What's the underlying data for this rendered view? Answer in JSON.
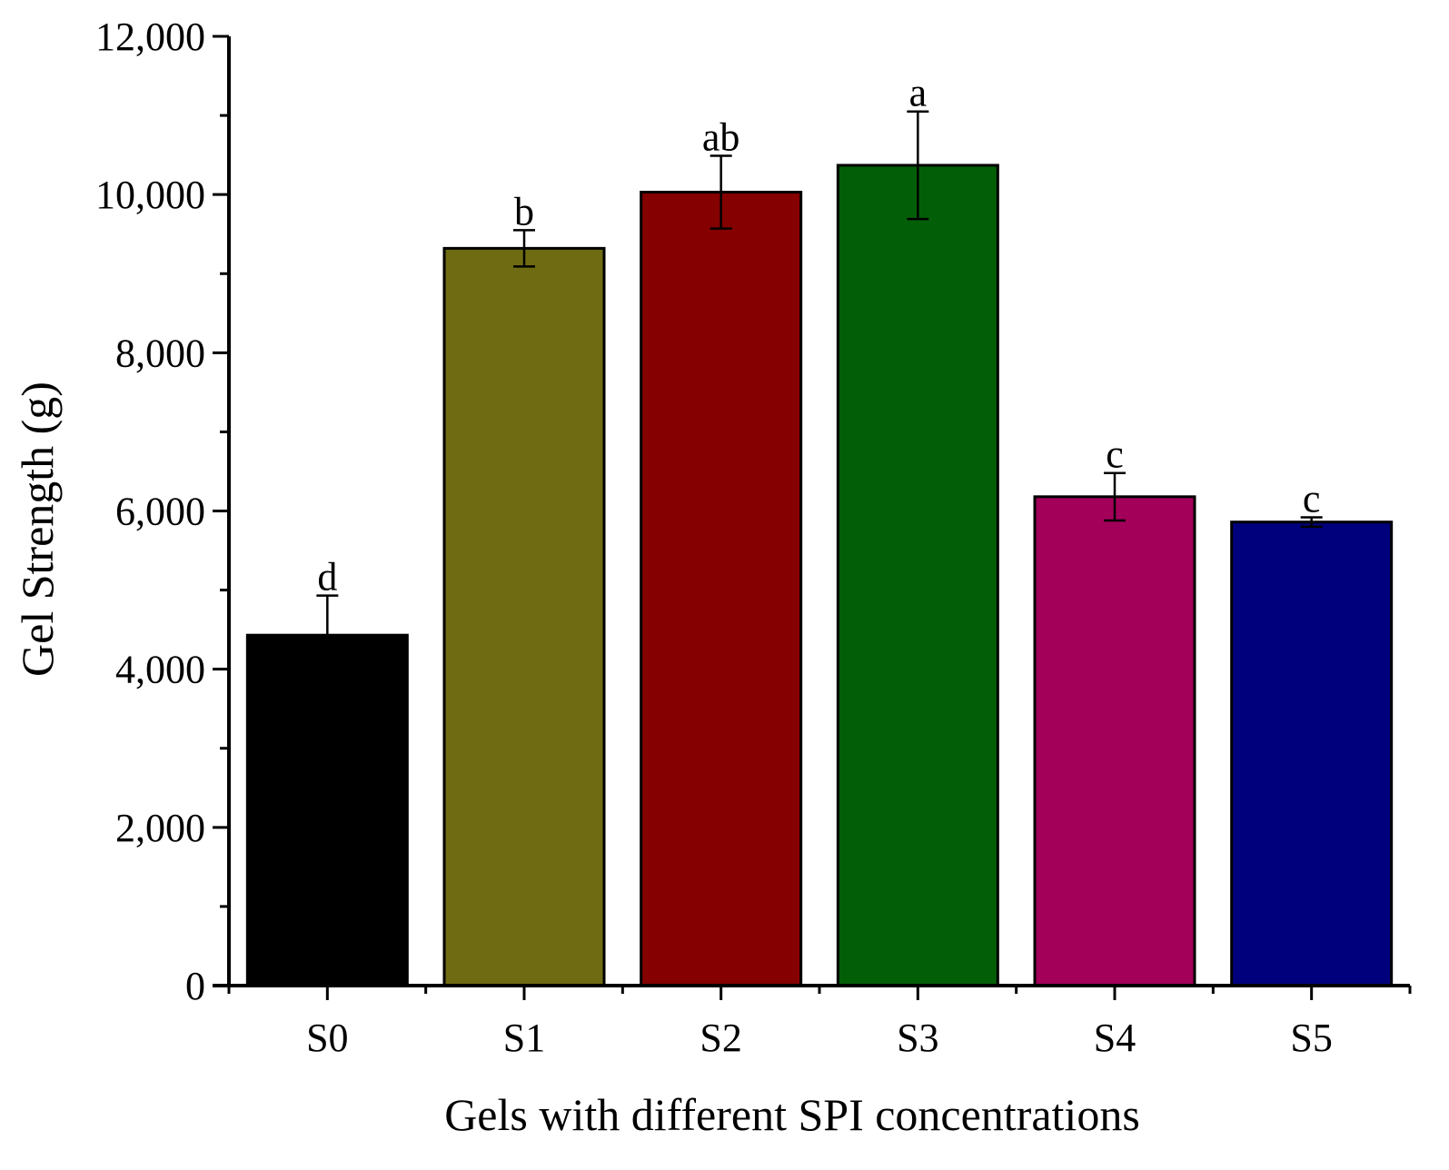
{
  "chart_data": {
    "type": "bar",
    "title": "",
    "xlabel": "Gels with different SPI concentrations",
    "ylabel": "Gel Strength (g)",
    "ylim": [
      0,
      12000
    ],
    "yticks": [
      0,
      2000,
      4000,
      6000,
      8000,
      10000,
      12000
    ],
    "ytick_labels": [
      "0",
      "2,000",
      "4,000",
      "6,000",
      "8,000",
      "10,000",
      "12,000"
    ],
    "minor_ticks": true,
    "grid": false,
    "legend": "none",
    "categories": [
      "S0",
      "S1",
      "S2",
      "S3",
      "S4",
      "S5"
    ],
    "values": [
      4430,
      9320,
      10030,
      10370,
      6180,
      5860
    ],
    "errors": [
      500,
      230,
      460,
      680,
      300,
      60
    ],
    "significance": [
      "d",
      "b",
      "ab",
      "a",
      "c",
      "c"
    ],
    "colors": [
      "#000000",
      "#6e6b12",
      "#850000",
      "#035f07",
      "#a3005a",
      "#00007c"
    ]
  }
}
